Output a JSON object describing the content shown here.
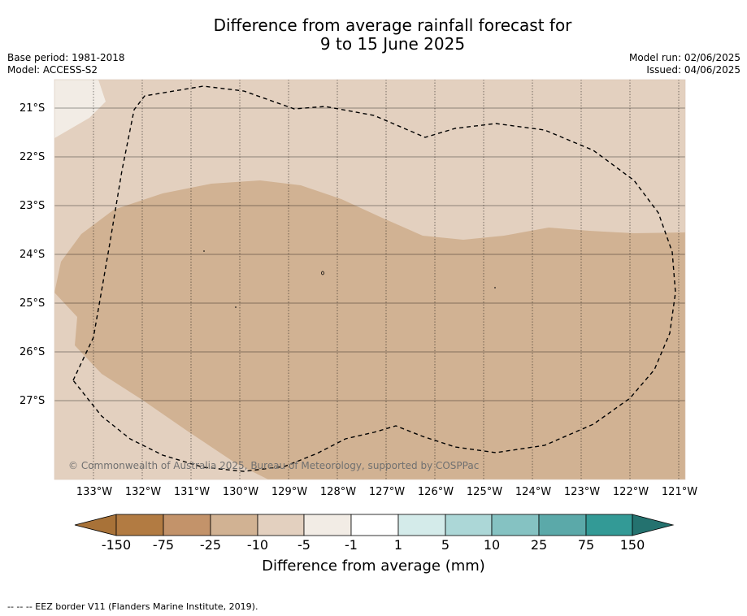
{
  "header": {
    "title_line1": "Difference from average rainfall forecast for",
    "title_line2": "9 to 15 June 2025",
    "base_period": "Base period: 1981-2018",
    "model": "Model: ACCESS-S2",
    "model_run": "Model run: 02/06/2025",
    "issued": "Issued: 04/06/2025"
  },
  "map": {
    "lat_labels": [
      "21°S",
      "22°S",
      "23°S",
      "24°S",
      "25°S",
      "26°S",
      "27°S"
    ],
    "lon_labels": [
      "133°W",
      "132°W",
      "131°W",
      "130°W",
      "129°W",
      "128°W",
      "127°W",
      "126°W",
      "125°W",
      "124°W",
      "123°W",
      "122°W",
      "121°W"
    ],
    "copyright": "© Commonwealth of Australia 2025, Bureau of Meteorology, supported by COSPPac",
    "colors": {
      "light_dry": "#e3d0bf",
      "moderate_dry": "#d1b293",
      "near_normal": "#f2ece5",
      "border": "#000000"
    }
  },
  "colorbar": {
    "label": "Difference from average (mm)",
    "ticks": [
      "-150",
      "-75",
      "-25",
      "-10",
      "-5",
      "-1",
      "1",
      "5",
      "10",
      "25",
      "75",
      "150"
    ],
    "colors": [
      "#a87238",
      "#b27b42",
      "#c3936a",
      "#d1b293",
      "#e3d0bf",
      "#f2ece5",
      "#ffffff",
      "#d4ebea",
      "#acd7d7",
      "#85c2c2",
      "#5ba9a9",
      "#339a96",
      "#24726f"
    ]
  },
  "footnote": "--  --  -- EEZ border V11 (Flanders Marine Institute, 2019)."
}
